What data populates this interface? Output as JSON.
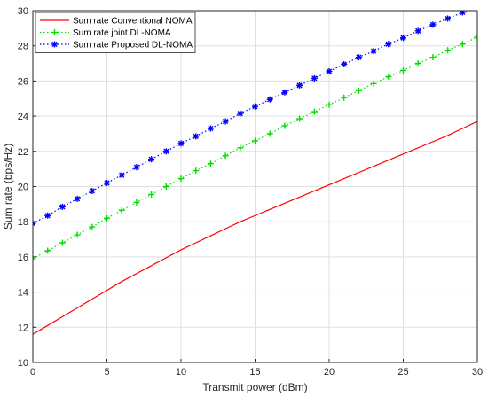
{
  "chart_data": {
    "type": "line",
    "xlabel": "Transmit power (dBm)",
    "ylabel": "Sum rate (bps/Hz)",
    "xlim": [
      0,
      30
    ],
    "ylim": [
      10,
      30
    ],
    "x_ticks": [
      0,
      5,
      10,
      15,
      20,
      25,
      30
    ],
    "y_ticks": [
      10,
      12,
      14,
      16,
      18,
      20,
      22,
      24,
      26,
      28,
      30
    ],
    "grid": true,
    "legend_position": "top-left",
    "x": [
      0,
      1,
      2,
      3,
      4,
      5,
      6,
      7,
      8,
      9,
      10,
      11,
      12,
      13,
      14,
      15,
      16,
      17,
      18,
      19,
      20,
      21,
      22,
      23,
      24,
      25,
      26,
      27,
      28,
      29,
      30
    ],
    "series": [
      {
        "name": "Sum rate Conventional NOMA",
        "color": "#ff0000",
        "line_style": "solid",
        "marker": "none",
        "values": [
          11.6,
          12.1,
          12.6,
          13.1,
          13.6,
          14.1,
          14.6,
          15.05,
          15.5,
          15.95,
          16.4,
          16.8,
          17.2,
          17.6,
          18.0,
          18.35,
          18.7,
          19.05,
          19.4,
          19.75,
          20.1,
          20.45,
          20.8,
          21.15,
          21.5,
          21.85,
          22.2,
          22.55,
          22.9,
          23.3,
          23.7
        ]
      },
      {
        "name": "Sum rate joint DL-NOMA",
        "color": "#00e000",
        "line_style": "dotted",
        "marker": "plus",
        "values": [
          15.9,
          16.35,
          16.8,
          17.25,
          17.7,
          18.2,
          18.65,
          19.1,
          19.55,
          20.0,
          20.45,
          20.9,
          21.3,
          21.75,
          22.2,
          22.6,
          23.0,
          23.45,
          23.85,
          24.25,
          24.65,
          25.05,
          25.45,
          25.85,
          26.25,
          26.6,
          27.0,
          27.35,
          27.75,
          28.1,
          28.5
        ]
      },
      {
        "name": "Sum rate Proposed DL-NOMA",
        "color": "#0000ff",
        "line_style": "dotted",
        "marker": "asterisk",
        "values": [
          17.9,
          18.35,
          18.85,
          19.3,
          19.75,
          20.2,
          20.65,
          21.1,
          21.55,
          22.0,
          22.45,
          22.85,
          23.3,
          23.7,
          24.15,
          24.55,
          24.95,
          25.35,
          25.75,
          26.15,
          26.55,
          26.95,
          27.35,
          27.7,
          28.1,
          28.45,
          28.85,
          29.2,
          29.55,
          29.9,
          30.25
        ]
      }
    ]
  }
}
